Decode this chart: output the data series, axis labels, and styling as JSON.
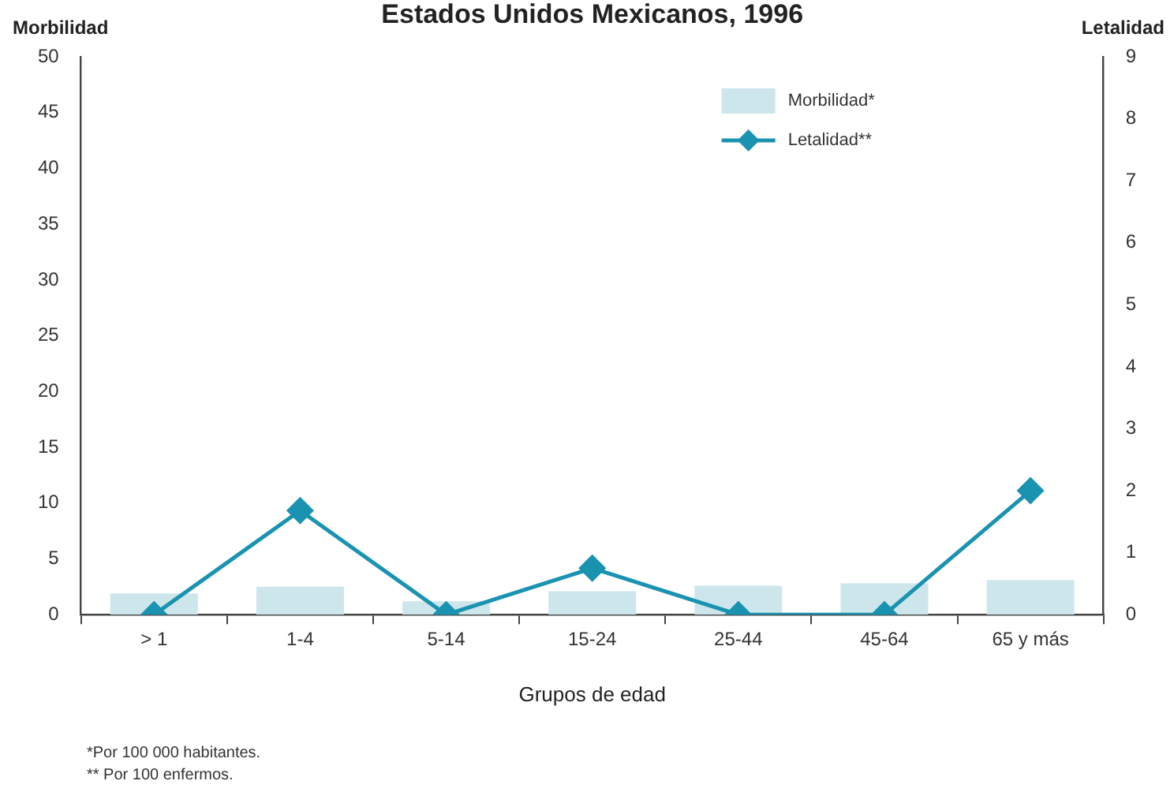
{
  "chart_data": {
    "type": "bar",
    "title": "Estados Unidos Mexicanos, 1996",
    "xlabel": "Grupos de edad",
    "ylabel": "Morbilidad",
    "y2label": "Letalidad",
    "categories": [
      "> 1",
      "1-4",
      "5-14",
      "15-24",
      "25-44",
      "45-64",
      "65 y más"
    ],
    "series": [
      {
        "name": "Morbilidad*",
        "color": "#cde6ec",
        "values": [
          1.9,
          2.5,
          1.2,
          2.1,
          2.6,
          2.8,
          3.1
        ]
      },
      {
        "name": "Letalidad**",
        "type": "line",
        "axis": "y2",
        "color": "#1a93b0",
        "marker": "diamond",
        "values": [
          0,
          1.68,
          0,
          0.75,
          0,
          0,
          2.0
        ]
      }
    ],
    "ylim": [
      0,
      50
    ],
    "yticks": [
      0,
      5,
      10,
      15,
      20,
      25,
      30,
      35,
      40,
      45,
      50
    ],
    "y2lim": [
      0,
      9
    ],
    "y2ticks": [
      0,
      1,
      2,
      3,
      4,
      5,
      6,
      7,
      8,
      9
    ],
    "grid": false,
    "legend": "top right",
    "annotations": [
      "*Por 100 000 habitantes.",
      "** Por 100 enfermos."
    ]
  }
}
